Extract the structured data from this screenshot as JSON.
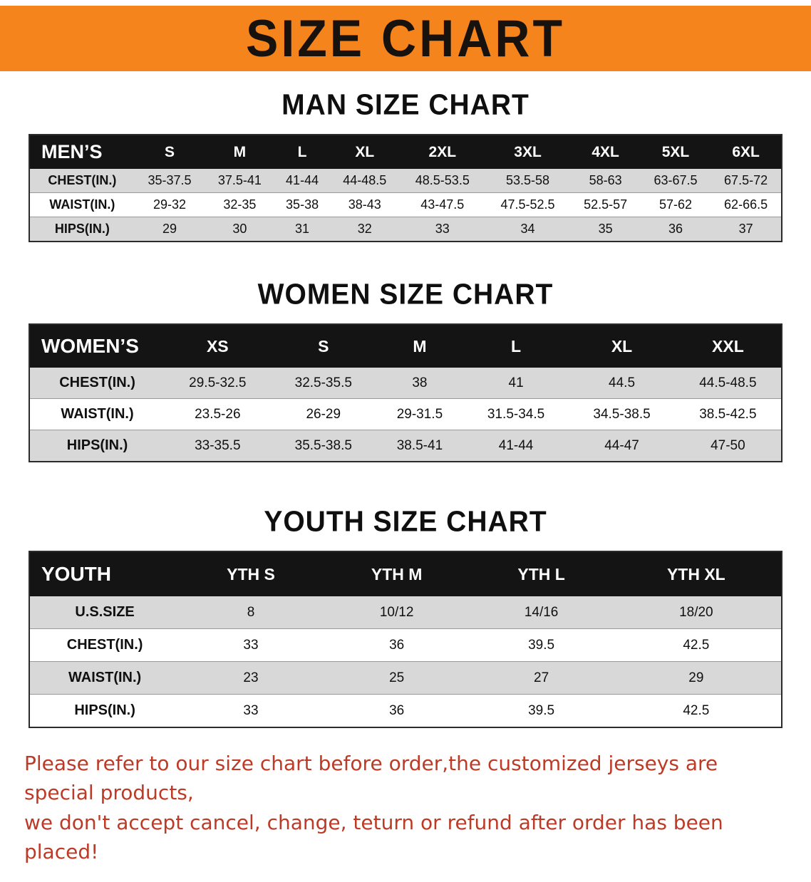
{
  "banner": {
    "title": "SIZE CHART"
  },
  "colors": {
    "banner_bg": "#f6841d",
    "header_bg": "#141414",
    "row_alt_bg": "#d8d8d8",
    "footer_text": "#bd3a26"
  },
  "sections": [
    {
      "id": "men",
      "heading": "MAN SIZE CHART",
      "table": {
        "title": "MEN’S",
        "columns": [
          "S",
          "M",
          "L",
          "XL",
          "2XL",
          "3XL",
          "4XL",
          "5XL",
          "6XL"
        ],
        "rows": [
          {
            "label": "CHEST(IN.)",
            "values": [
              "35-37.5",
              "37.5-41",
              "41-44",
              "44-48.5",
              "48.5-53.5",
              "53.5-58",
              "58-63",
              "63-67.5",
              "67.5-72"
            ]
          },
          {
            "label": "WAIST(IN.)",
            "values": [
              "29-32",
              "32-35",
              "35-38",
              "38-43",
              "43-47.5",
              "47.5-52.5",
              "52.5-57",
              "57-62",
              "62-66.5"
            ]
          },
          {
            "label": "HIPS(IN.)",
            "values": [
              "29",
              "30",
              "31",
              "32",
              "33",
              "34",
              "35",
              "36",
              "37"
            ]
          }
        ]
      }
    },
    {
      "id": "women",
      "heading": "WOMEN SIZE CHART",
      "table": {
        "title": "WOMEN’S",
        "columns": [
          "XS",
          "S",
          "M",
          "L",
          "XL",
          "XXL"
        ],
        "rows": [
          {
            "label": "CHEST(IN.)",
            "values": [
              "29.5-32.5",
              "32.5-35.5",
              "38",
              "41",
              "44.5",
              "44.5-48.5"
            ]
          },
          {
            "label": "WAIST(IN.)",
            "values": [
              "23.5-26",
              "26-29",
              "29-31.5",
              "31.5-34.5",
              "34.5-38.5",
              "38.5-42.5"
            ]
          },
          {
            "label": "HIPS(IN.)",
            "values": [
              "33-35.5",
              "35.5-38.5",
              "38.5-41",
              "41-44",
              "44-47",
              "47-50"
            ]
          }
        ]
      }
    },
    {
      "id": "youth",
      "heading": "YOUTH SIZE CHART",
      "table": {
        "title": "YOUTH",
        "columns": [
          "YTH S",
          "YTH M",
          "YTH L",
          "YTH XL"
        ],
        "rows": [
          {
            "label": "U.S.SIZE",
            "values": [
              "8",
              "10/12",
              "14/16",
              "18/20"
            ]
          },
          {
            "label": "CHEST(IN.)",
            "values": [
              "33",
              "36",
              "39.5",
              "42.5"
            ]
          },
          {
            "label": "WAIST(IN.)",
            "values": [
              "23",
              "25",
              "27",
              "29"
            ]
          },
          {
            "label": "HIPS(IN.)",
            "values": [
              "33",
              "36",
              "39.5",
              "42.5"
            ]
          }
        ]
      }
    }
  ],
  "footer": {
    "line1": "Please refer to our size chart before order,the customized jerseys are special products,",
    "line2": "we don't accept cancel, change, teturn or refund after order has been placed!"
  }
}
